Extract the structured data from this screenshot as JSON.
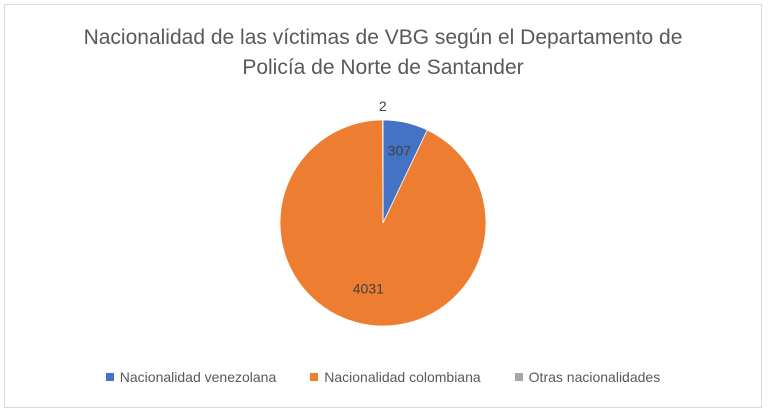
{
  "chart_data": {
    "type": "pie",
    "title_lines": [
      "Nacionalidad de las víctimas de VBG según el Departamento de",
      "Policía de Norte de Santander"
    ],
    "categories": [
      "Nacionalidad venezolana",
      "Nacionalidad colombiana",
      "Otras nacionalidades"
    ],
    "values": [
      307,
      4031,
      2
    ],
    "colors": [
      "#4472C4",
      "#ED7D31",
      "#A5A5A5"
    ],
    "legend_position": "bottom",
    "start_angle_deg": 0,
    "direction": "clockwise"
  }
}
